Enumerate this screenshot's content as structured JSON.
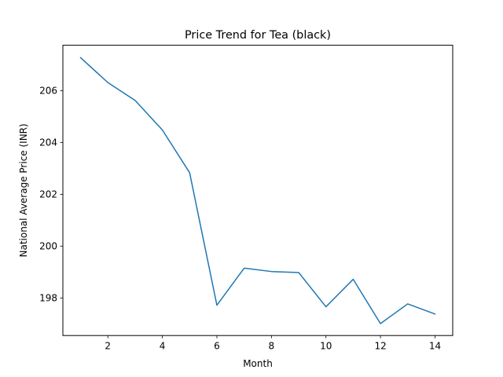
{
  "chart_data": {
    "type": "line",
    "title": "Price Trend for Tea (black)",
    "xlabel": "Month",
    "ylabel": "National Average Price (INR)",
    "xlim": [
      0.35,
      14.65
    ],
    "ylim": [
      196.55,
      207.75
    ],
    "xticks": [
      2,
      4,
      6,
      8,
      10,
      12,
      14
    ],
    "yticks": [
      198,
      200,
      202,
      204,
      206
    ],
    "grid": false,
    "legend": "none",
    "series": [
      {
        "color": "#1f77b4",
        "x": [
          1,
          2,
          3,
          4,
          5,
          6,
          7,
          8,
          9,
          10,
          11,
          12,
          13,
          14
        ],
        "y": [
          207.27,
          206.31,
          205.62,
          204.48,
          202.83,
          197.72,
          199.15,
          199.02,
          198.98,
          197.66,
          198.72,
          197.01,
          197.77,
          197.38
        ]
      }
    ]
  }
}
